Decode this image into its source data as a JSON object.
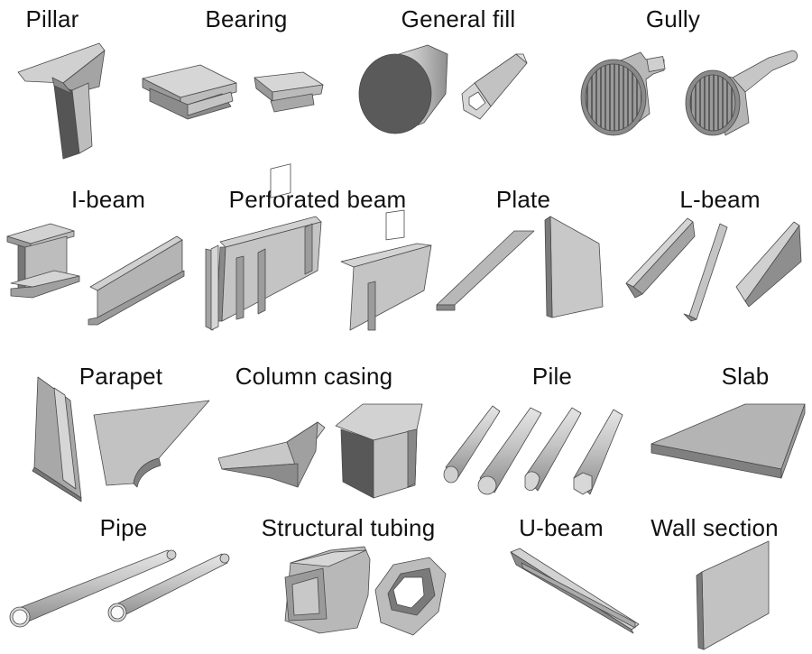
{
  "labels": {
    "pillar": "Pillar",
    "bearing": "Bearing",
    "general_fill": "General fill",
    "gully": "Gully",
    "i_beam": "I-beam",
    "perforated_beam": "Perforated beam",
    "plate": "Plate",
    "l_beam": "L-beam",
    "parapet": "Parapet",
    "column_casing": "Column casing",
    "pile": "Pile",
    "slab": "Slab",
    "pipe": "Pipe",
    "structural_tubing": "Structural tubing",
    "u_beam": "U-beam",
    "wall_section": "Wall section"
  },
  "colors": {
    "light": "#d2d2d2",
    "mid": "#a8a8a8",
    "dark": "#6e6e6e",
    "edge": "#4a4a4a"
  }
}
